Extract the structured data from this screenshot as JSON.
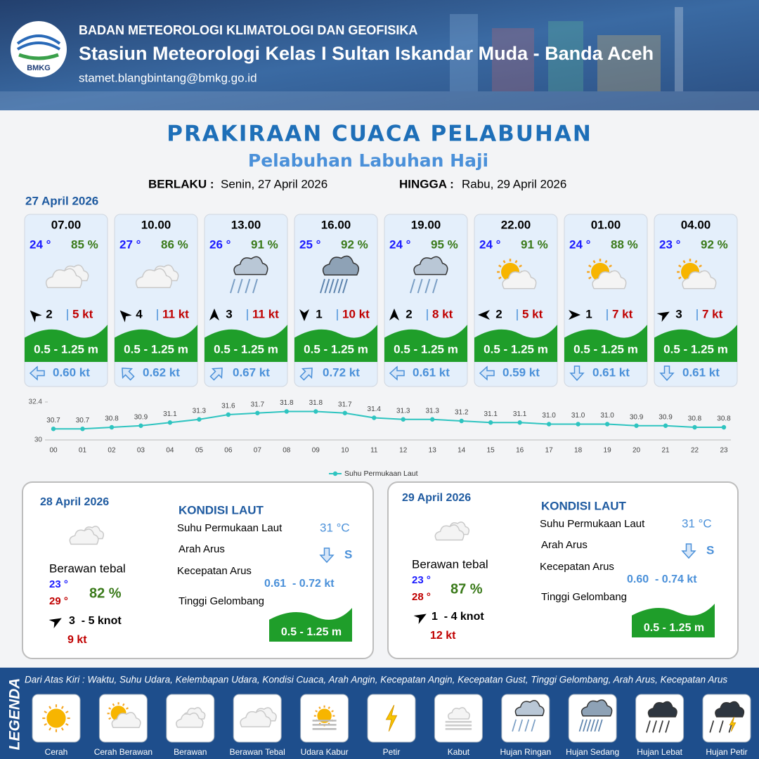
{
  "header": {
    "logo": "BMKG",
    "organization": "BADAN METEOROLOGI KLIMATOLOGI DAN GEOFISIKA",
    "station": "Stasiun Meteorologi Kelas I Sultan Iskandar Muda - Banda Aceh",
    "email": "stamet.blangbintang@bmkg.go.id"
  },
  "title": "PRAKIRAAN CUACA PELABUHAN",
  "subtitle": "Pelabuhan Labuhan Haji",
  "validity": {
    "from_label": "BERLAKU :",
    "from": "Senin, 27 April 2026",
    "to_label": "HINGGA :",
    "to": "Rabu, 29 April 2026"
  },
  "today": {
    "date": "27 April 2026",
    "forecasts": [
      {
        "time": "07.00",
        "temperature": "24 °",
        "humidity": "85 %",
        "wind_speed": "2",
        "gust": "5 kt",
        "wave": "0.5 - 1.25 m",
        "current": "0.60 kt"
      },
      {
        "time": "10.00",
        "temperature": "27 °",
        "humidity": "86 %",
        "wind_speed": "4",
        "gust": "11 kt",
        "wave": "0.5 - 1.25 m",
        "current": "0.62 kt"
      },
      {
        "time": "13.00",
        "temperature": "26 °",
        "humidity": "91 %",
        "wind_speed": "3",
        "gust": "11 kt",
        "wave": "0.5 - 1.25 m",
        "current": "0.67 kt"
      },
      {
        "time": "16.00",
        "temperature": "25 °",
        "humidity": "92 %",
        "wind_speed": "1",
        "gust": "10 kt",
        "wave": "0.5 - 1.25 m",
        "current": "0.72 kt"
      },
      {
        "time": "19.00",
        "temperature": "24 °",
        "humidity": "95 %",
        "wind_speed": "2",
        "gust": "8 kt",
        "wave": "0.5 - 1.25 m",
        "current": "0.61 kt"
      },
      {
        "time": "22.00",
        "temperature": "24 °",
        "humidity": "91 %",
        "wind_speed": "2",
        "gust": "5 kt",
        "wave": "0.5 - 1.25 m",
        "current": "0.59 kt"
      },
      {
        "time": "01.00",
        "temperature": "24 °",
        "humidity": "88 %",
        "wind_speed": "1",
        "gust": "7 kt",
        "wave": "0.5 - 1.25 m",
        "current": "0.61 kt"
      },
      {
        "time": "04.00",
        "temperature": "23 °",
        "humidity": "92 %",
        "wind_speed": "3",
        "gust": "7 kt",
        "wave": "0.5 - 1.25 m",
        "current": "0.61 kt"
      }
    ]
  },
  "chart_data": {
    "type": "line",
    "categories": [
      "00",
      "01",
      "02",
      "03",
      "04",
      "05",
      "06",
      "07",
      "08",
      "09",
      "10",
      "11",
      "12",
      "13",
      "14",
      "15",
      "16",
      "17",
      "18",
      "19",
      "20",
      "21",
      "22",
      "23"
    ],
    "series": [
      {
        "name": "Suhu Permukaan Laut",
        "color": "#2ec4c0",
        "values": [
          30.7,
          30.7,
          30.8,
          30.9,
          31.1,
          31.3,
          31.6,
          31.7,
          31.8,
          31.8,
          31.7,
          31.4,
          31.3,
          31.3,
          31.2,
          31.1,
          31.1,
          31.0,
          31.0,
          31.0,
          30.9,
          30.9,
          30.8,
          30.8
        ],
        "value_labels": [
          "30.7",
          "30.7",
          "30.8",
          "30.9",
          "31.1",
          "31.3",
          "31.6",
          "31.7",
          "31.8",
          "31.8",
          "31.7",
          "31.4",
          "31.3",
          "31.3",
          "31.2",
          "31.1",
          "31.1",
          "31.0",
          "31.0",
          "31.0",
          "30.9",
          "30.9",
          "30.8",
          "30.8"
        ]
      }
    ],
    "ylim": [
      30,
      32.4
    ],
    "yticks": [
      30,
      32.4
    ]
  },
  "days": [
    {
      "date": "28 April 2026",
      "condition": "Berawan tebal",
      "temp_min": "23 °",
      "temp_max": "29 °",
      "humidity": "82 %",
      "wind": "3  - 5 knot",
      "gust": "9 kt",
      "sea_heading": "KONDISI LAUT",
      "sst_label": "Suhu Permukaan Laut",
      "sst": "31 °C",
      "current_dir_label": "Arah Arus",
      "current_dir": "S",
      "current_speed_label": "Kecepatan Arus",
      "current_speed": "0.61  - 0.72 kt",
      "wave_label": "Tinggi Gelombang",
      "wave": "0.5 - 1.25 m"
    },
    {
      "date": "29 April 2026",
      "condition": "Berawan tebal",
      "temp_min": "23 °",
      "temp_max": "28 °",
      "humidity": "87 %",
      "wind": "1  - 4 knot",
      "gust": "12 kt",
      "sea_heading": "KONDISI LAUT",
      "sst_label": "Suhu Permukaan Laut",
      "sst": "31 °C",
      "current_dir_label": "Arah Arus",
      "current_dir": "S",
      "current_speed_label": "Kecepatan Arus",
      "current_speed": "0.60  - 0.74 kt",
      "wave_label": "Tinggi Gelombang",
      "wave": "0.5 - 1.25 m"
    }
  ],
  "legend": {
    "title": "LEGENDA",
    "description": "Dari Atas Kiri : Waktu, Suhu Udara, Kelembapan Udara, Kondisi Cuaca, Arah Angin, Kecepatan Angin, Kecepatan Gust, Tinggi Gelombang, Arah Arus, Kecepatan Arus",
    "items": [
      "Cerah",
      "Cerah Berawan",
      "Berawan",
      "Berawan Tebal",
      "Udara Kabur",
      "Petir",
      "Kabut",
      "Hujan Ringan",
      "Hujan Sedang",
      "Hujan Lebat",
      "Hujan Petir"
    ]
  }
}
